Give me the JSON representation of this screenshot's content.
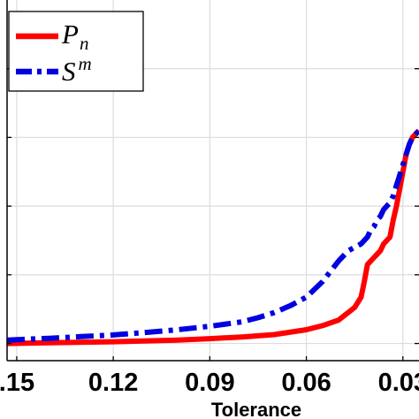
{
  "chart_data": {
    "type": "line",
    "title": "",
    "xlabel": "Tolerance",
    "ylabel": "",
    "x_reversed": true,
    "xlim": [
      0.153,
      0.025
    ],
    "ylim": [
      -0.05,
      1.0
    ],
    "grid": true,
    "legend_position": "top-left",
    "x_ticks": [
      0.15,
      0.12,
      0.09,
      0.06,
      0.03
    ],
    "x_tick_labels": [
      ".15",
      "0.12",
      "0.09",
      "0.06",
      "0.03"
    ],
    "y_ticks": [
      0.0,
      0.2,
      0.4,
      0.6,
      0.8
    ],
    "series": [
      {
        "name_main": "P",
        "name_sub": "n",
        "color": "#ff0000",
        "style": "solid",
        "x": [
          0.153,
          0.14,
          0.12,
          0.1,
          0.09,
          0.08,
          0.07,
          0.06,
          0.055,
          0.05,
          0.045,
          0.043,
          0.042,
          0.041,
          0.04,
          0.039,
          0.038,
          0.037,
          0.036,
          0.035,
          0.034,
          0.033,
          0.032,
          0.031,
          0.03,
          0.029,
          0.028,
          0.027,
          0.026,
          0.025
        ],
        "y": [
          0.0,
          0.002,
          0.005,
          0.01,
          0.014,
          0.019,
          0.026,
          0.04,
          0.052,
          0.068,
          0.105,
          0.135,
          0.18,
          0.23,
          0.24,
          0.25,
          0.26,
          0.27,
          0.29,
          0.3,
          0.31,
          0.36,
          0.4,
          0.45,
          0.5,
          0.55,
          0.58,
          0.6,
          0.61,
          0.62
        ]
      },
      {
        "name_main": "S",
        "name_sup": "m",
        "color": "#0000e0",
        "style": "dashdot",
        "x": [
          0.153,
          0.14,
          0.13,
          0.12,
          0.11,
          0.1,
          0.09,
          0.08,
          0.075,
          0.07,
          0.065,
          0.06,
          0.055,
          0.05,
          0.047,
          0.045,
          0.043,
          0.042,
          0.041,
          0.04,
          0.039,
          0.038,
          0.037,
          0.036,
          0.035,
          0.034,
          0.033,
          0.032,
          0.031,
          0.03,
          0.029,
          0.028,
          0.027,
          0.026,
          0.025
        ],
        "y": [
          0.01,
          0.015,
          0.02,
          0.025,
          0.032,
          0.04,
          0.05,
          0.063,
          0.075,
          0.09,
          0.11,
          0.135,
          0.18,
          0.24,
          0.27,
          0.28,
          0.29,
          0.3,
          0.31,
          0.33,
          0.34,
          0.36,
          0.37,
          0.39,
          0.4,
          0.41,
          0.43,
          0.46,
          0.49,
          0.52,
          0.55,
          0.58,
          0.6,
          0.61,
          0.62
        ]
      }
    ]
  }
}
